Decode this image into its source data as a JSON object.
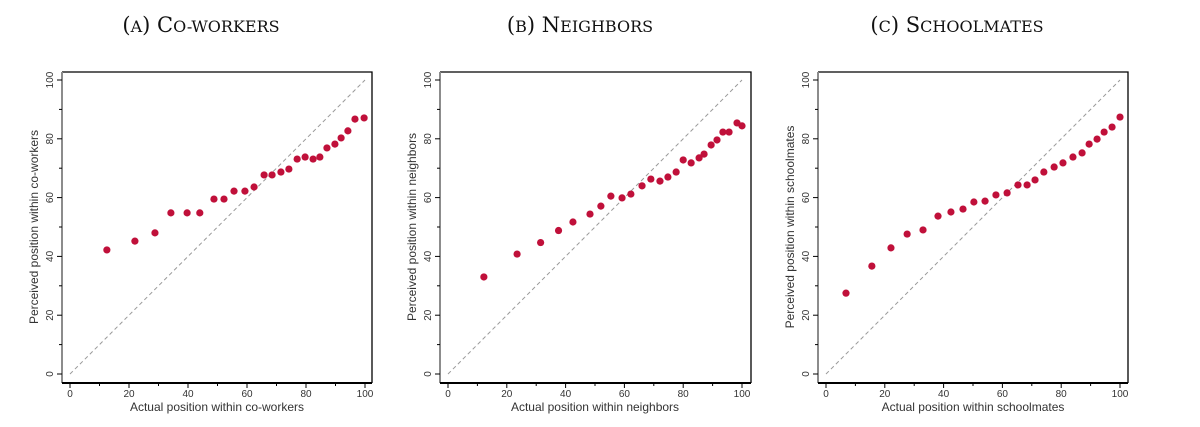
{
  "colors": {
    "point": "#C0103A",
    "diagonal": "#9a9a9a",
    "frame": "#000000",
    "axis": "#8c8c8c"
  },
  "chart_data": [
    {
      "type": "scatter",
      "panel_label": "(A)",
      "title": "Co-workers",
      "xlabel": "Actual position within co-workers",
      "ylabel": "Perceived position within co-workers",
      "xlim": [
        0,
        100
      ],
      "ylim": [
        0,
        100
      ],
      "xticks": [
        0,
        20,
        40,
        60,
        80,
        100
      ],
      "yticks": [
        0,
        20,
        40,
        60,
        80,
        100
      ],
      "reference_line": "45-degree dashed diagonal (y = x)",
      "grid": false,
      "x": [
        12.5,
        22,
        28.8,
        34.2,
        39.7,
        44,
        48.8,
        52.2,
        55.6,
        59.3,
        62.4,
        65.8,
        68.5,
        71.5,
        74.2,
        77,
        79.7,
        82.4,
        84.7,
        87.1,
        89.8,
        91.9,
        94.2,
        96.6,
        99.7
      ],
      "y": [
        42.2,
        45.2,
        48,
        54.8,
        54.8,
        54.8,
        59.5,
        59.5,
        62.2,
        62.2,
        63.6,
        67.7,
        67.7,
        68.7,
        69.7,
        73.1,
        73.8,
        73.1,
        73.8,
        76.9,
        78.2,
        80.3,
        82.7,
        86.7,
        87.1
      ]
    },
    {
      "type": "scatter",
      "panel_label": "(B)",
      "title": "Neighbors",
      "xlabel": "Actual position within neighbors",
      "ylabel": "Perceived position within neighbors",
      "xlim": [
        0,
        100
      ],
      "ylim": [
        0,
        100
      ],
      "xticks": [
        0,
        20,
        40,
        60,
        80,
        100
      ],
      "yticks": [
        0,
        20,
        40,
        60,
        80,
        100
      ],
      "reference_line": "45-degree dashed diagonal (y = x)",
      "grid": false,
      "x": [
        12.2,
        23.5,
        31.5,
        37.6,
        42.5,
        48.3,
        52,
        55.4,
        59.2,
        62.2,
        66,
        69,
        72.1,
        74.8,
        77.6,
        80,
        82.7,
        85.4,
        87.1,
        89.5,
        91.5,
        93.5,
        95.6,
        98.3,
        100
      ],
      "y": [
        33,
        40.8,
        44.7,
        48.8,
        51.7,
        54.4,
        57.1,
        60.5,
        59.9,
        61.2,
        64,
        66.3,
        65.6,
        67,
        68.7,
        72.8,
        71.8,
        73.5,
        74.8,
        77.9,
        79.6,
        82.3,
        82.3,
        85.4,
        84.4
      ]
    },
    {
      "type": "scatter",
      "panel_label": "(C)",
      "title": "Schoolmates",
      "xlabel": "Actual position within schoolmates",
      "ylabel": "Perceived position within schoolmates",
      "xlim": [
        0,
        100
      ],
      "ylim": [
        0,
        100
      ],
      "xticks": [
        0,
        20,
        40,
        60,
        80,
        100
      ],
      "yticks": [
        0,
        20,
        40,
        60,
        80,
        100
      ],
      "reference_line": "45-degree dashed diagonal (y = x)",
      "grid": false,
      "x": [
        6.8,
        15.6,
        22.1,
        27.6,
        33,
        38.1,
        42.5,
        46.6,
        50.3,
        54.1,
        57.8,
        61.6,
        65.3,
        68.4,
        71.1,
        74.1,
        77.6,
        80.6,
        84,
        87.1,
        89.5,
        92.2,
        94.6,
        97.3,
        100
      ],
      "y": [
        27.5,
        36.7,
        42.9,
        47.6,
        49,
        53.7,
        55.1,
        56.1,
        58.5,
        58.8,
        60.9,
        61.6,
        64.3,
        64.3,
        66,
        68.7,
        70.4,
        71.8,
        73.8,
        75.2,
        78.2,
        79.9,
        82.3,
        84,
        87.4
      ]
    }
  ]
}
